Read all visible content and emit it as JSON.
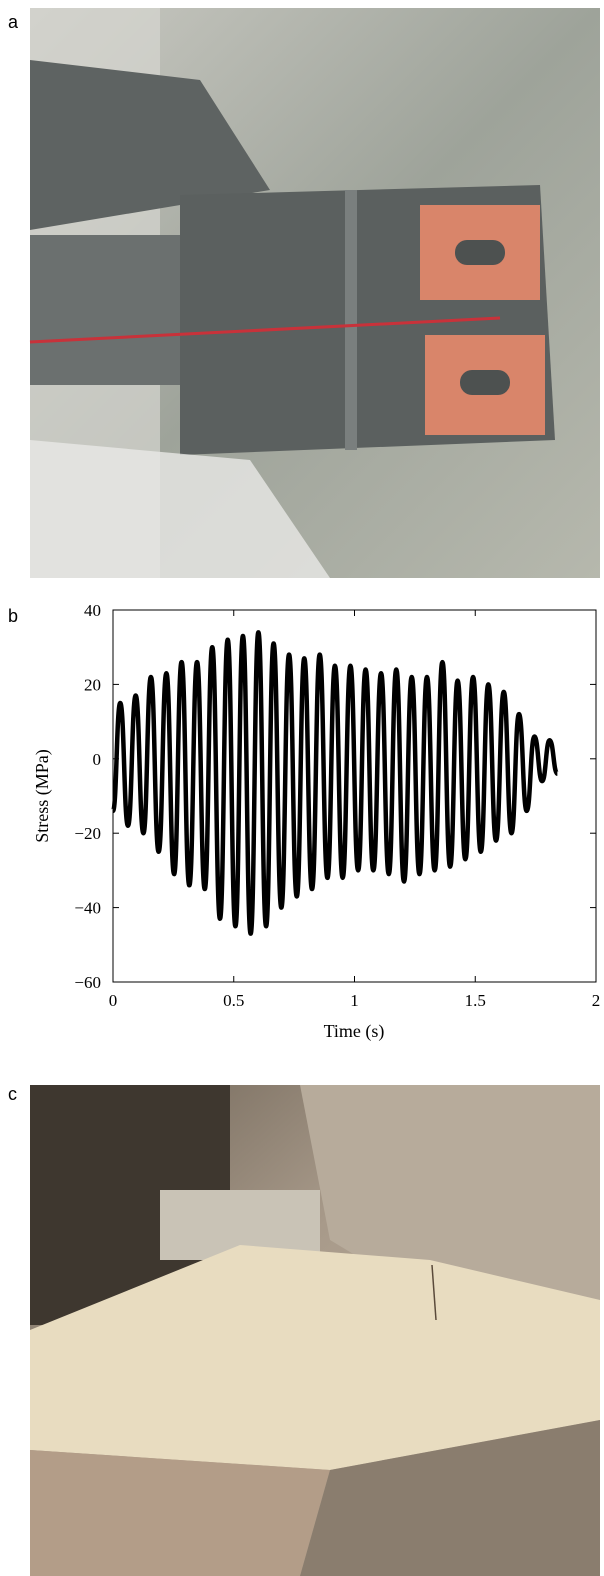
{
  "panel_labels": [
    "a",
    "b",
    "c"
  ],
  "chart_data": {
    "type": "line",
    "xlabel": "Time (s)",
    "ylabel": "Stress (MPa)",
    "xlim": [
      0,
      2
    ],
    "ylim": [
      -60,
      40
    ],
    "xticks": [
      0,
      0.5,
      1,
      1.5,
      2
    ],
    "yticks": [
      {
        "value": -60,
        "label": "−60"
      },
      {
        "value": -40,
        "label": "−40"
      },
      {
        "value": -20,
        "label": "−20"
      },
      0,
      20,
      40
    ],
    "grid": false,
    "series": [
      {
        "color": "#000000",
        "x": [
          0,
          0.03,
          0.062,
          0.094,
          0.126,
          0.157,
          0.189,
          0.221,
          0.253,
          0.284,
          0.316,
          0.348,
          0.38,
          0.411,
          0.443,
          0.475,
          0.507,
          0.538,
          0.57,
          0.602,
          0.634,
          0.665,
          0.697,
          0.729,
          0.761,
          0.792,
          0.824,
          0.856,
          0.888,
          0.919,
          0.951,
          0.983,
          1.015,
          1.046,
          1.078,
          1.11,
          1.142,
          1.173,
          1.205,
          1.237,
          1.269,
          1.3,
          1.332,
          1.364,
          1.396,
          1.427,
          1.459,
          1.491,
          1.523,
          1.554,
          1.586,
          1.618,
          1.65,
          1.681,
          1.713,
          1.745,
          1.777,
          1.808,
          1.84
        ],
        "values": [
          -14,
          15,
          -18,
          17,
          -20,
          22,
          -25,
          23,
          -31,
          26,
          -34,
          26,
          -35,
          30,
          -43,
          32,
          -45,
          33,
          -47,
          34,
          -45,
          31,
          -40,
          28,
          -37,
          27,
          -35,
          28,
          -32,
          25,
          -32,
          25,
          -30,
          24,
          -30,
          23,
          -31,
          24,
          -33,
          22,
          -31,
          22,
          -30,
          26,
          -29,
          21,
          -27,
          22,
          -25,
          20,
          -22,
          18,
          -20,
          12,
          -14,
          6,
          -6,
          5,
          -4
        ]
      }
    ]
  }
}
